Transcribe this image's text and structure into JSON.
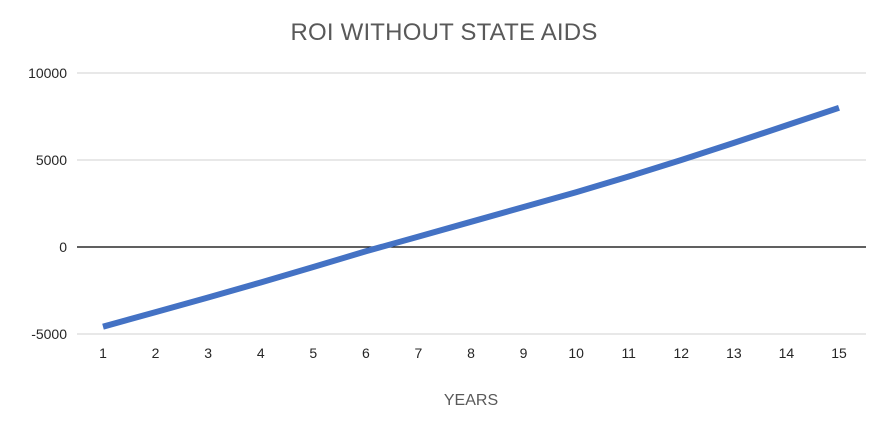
{
  "chart_data": {
    "type": "line",
    "title": "ROI WITHOUT STATE AIDS",
    "xlabel": "YEARS",
    "ylabel": "",
    "x": [
      1,
      2,
      3,
      4,
      5,
      6,
      7,
      8,
      9,
      10,
      11,
      12,
      13,
      14,
      15
    ],
    "x_tick_labels": [
      "1",
      "2",
      "3",
      "4",
      "5",
      "6",
      "7",
      "8",
      "9",
      "10",
      "11",
      "12",
      "13",
      "14",
      "15"
    ],
    "series": [
      {
        "values": [
          -4580,
          -3740,
          -2900,
          -2040,
          -1150,
          -250,
          600,
          1450,
          2300,
          3150,
          4050,
          5000,
          5980,
          6990,
          8000
        ]
      }
    ],
    "ylim": [
      -5000,
      10000
    ],
    "y_ticks": [
      -5000,
      0,
      5000,
      10000
    ],
    "y_tick_labels": [
      "-5000",
      "0",
      "5000",
      "10000"
    ],
    "grid": "horizontal",
    "legend": "none",
    "colors": {
      "line": "#4472c4",
      "gridline": "#d9d9d9",
      "zero_line": "#000000",
      "text": "#595959"
    }
  }
}
